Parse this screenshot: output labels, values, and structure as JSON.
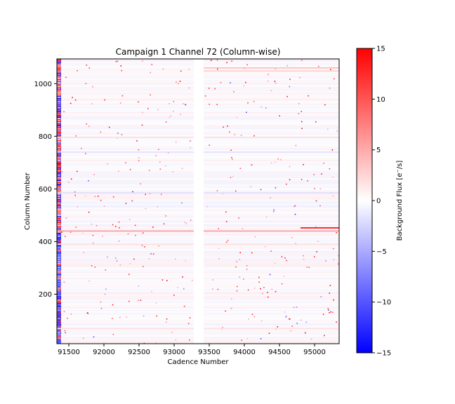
{
  "chart_data": {
    "type": "heatmap",
    "title": "Campaign 1 Channel 72 (Column-wise)",
    "xlabel": "Cadence Number",
    "ylabel": "Column Number",
    "xlim": [
      91330,
      95350
    ],
    "ylim": [
      12,
      1094
    ],
    "x_ticks": [
      91500,
      92000,
      92500,
      93000,
      93500,
      94000,
      94500,
      95000
    ],
    "y_ticks": [
      200,
      400,
      600,
      800,
      1000
    ],
    "data_gap_x": [
      93280,
      93420
    ],
    "colorbar": {
      "label": "Background Flux [e$^-$/s]",
      "label_rendered": "Background Flux [e⁻/s]",
      "range": [
        -15,
        15
      ],
      "ticks": [
        15,
        10,
        5,
        0,
        -5,
        -10,
        -15
      ],
      "colormap": "bwr",
      "low_color": "#0000ff",
      "mid_color": "#ffffff",
      "high_color": "#ff0000"
    },
    "features": [
      {
        "type": "row",
        "column": 440,
        "x_start": 91330,
        "x_end": 95350,
        "value": 6
      },
      {
        "type": "row",
        "column": 452,
        "x_start": 94800,
        "x_end": 95350,
        "value": 15
      },
      {
        "type": "row",
        "column": 1060,
        "x_start": 93420,
        "x_end": 95350,
        "value": 4
      },
      {
        "type": "row",
        "column": 1048,
        "x_start": 93420,
        "x_end": 95350,
        "value": 3
      },
      {
        "type": "row",
        "column": 795,
        "x_start": 91330,
        "x_end": 95350,
        "value": 2
      },
      {
        "type": "row",
        "column": 740,
        "x_start": 91330,
        "x_end": 95350,
        "value": -2
      },
      {
        "type": "row",
        "column": 585,
        "x_start": 91330,
        "x_end": 95350,
        "value": -2
      },
      {
        "type": "row",
        "column": 390,
        "x_start": 91330,
        "x_end": 95350,
        "value": 2
      },
      {
        "type": "row",
        "column": 70,
        "x_start": 91330,
        "x_end": 95350,
        "value": 2
      }
    ]
  }
}
